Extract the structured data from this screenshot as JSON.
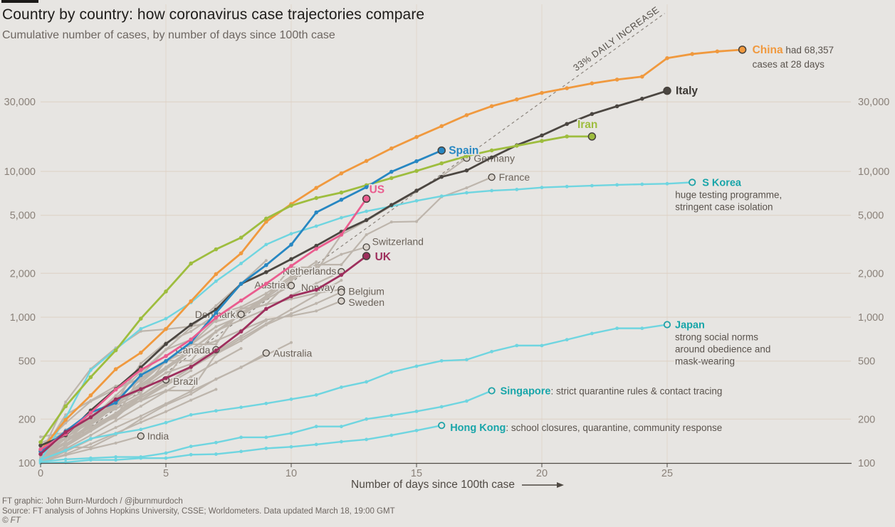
{
  "page": {
    "title": "Country by country: how coronavirus case trajectories compare",
    "subtitle": "Cumulative number of cases, by number of days since 100th case",
    "footer_lines": [
      "FT graphic: John Burn-Murdoch / @jburnmurdoch",
      "Source: FT analysis of Johns Hopkins University, CSSE; Worldometers. Data updated March 18, 19:00 GMT",
      "© FT"
    ]
  },
  "colors": {
    "background": "#e7e5e2",
    "china": "#f0993e",
    "italy": "#4b4641",
    "iran": "#9ebd3e",
    "spain": "#2787c2",
    "us": "#ea5d8f",
    "uk": "#9e2f5d",
    "asia_line": "#6fd5e0",
    "asia_dot_stroke": "#1fa3a8",
    "asia_label": "#18a5a9",
    "gray_line": "#bdb5ac",
    "gray_dot_fill": "#d8d2cb",
    "dot_stroke": "#46413c",
    "label_gray": "#6b6259",
    "note_text": "#5a534d",
    "axis_text": "#8a8179",
    "axis_line": "#514c46",
    "grid": "#ded1c4",
    "reference": "#8a837c"
  },
  "chart_data": {
    "type": "line",
    "x_scale": "linear",
    "y_scale": "log",
    "xlabel": "Number of days since 100th case",
    "x_ticks": [
      0,
      5,
      10,
      15,
      20,
      25
    ],
    "xlim": [
      0,
      32
    ],
    "ylim": [
      100,
      130000
    ],
    "grid": true,
    "y_ticks": [
      {
        "value": 100,
        "label": "100"
      },
      {
        "value": 200,
        "label": "200"
      },
      {
        "value": 500,
        "label": "500"
      },
      {
        "value": 1000,
        "label": "1,000"
      },
      {
        "value": 2000,
        "label": "2,000"
      },
      {
        "value": 5000,
        "label": "5,000"
      },
      {
        "value": 10000,
        "label": "10,000"
      },
      {
        "value": 30000,
        "label": "30,000"
      }
    ],
    "reference_line": {
      "label": "33% DAILY INCREASE",
      "daily_rate": 0.33,
      "start_value": 100
    },
    "series": [
      {
        "name": "Germany",
        "color_key": "gray",
        "emphasis": "gray",
        "values": [
          130,
          159,
          196,
          262,
          482,
          670,
          799,
          1040,
          1176,
          1457,
          1908,
          2078,
          3675,
          4585,
          5795,
          7272,
          9257,
          12327
        ],
        "label": {
          "dx": 10,
          "dy": 5,
          "anchor": "start"
        }
      },
      {
        "name": "France",
        "color_key": "gray",
        "emphasis": "gray",
        "values": [
          100,
          130,
          191,
          204,
          288,
          380,
          656,
          959,
          1136,
          1219,
          1794,
          2293,
          2293,
          3681,
          4496,
          4532,
          6683,
          7715,
          9124
        ],
        "label": {
          "dx": 10,
          "dy": 5,
          "anchor": "start"
        }
      },
      {
        "name": "Switzerland",
        "color_key": "gray",
        "emphasis": "gray",
        "values": [
          114,
          214,
          268,
          337,
          374,
          491,
          652,
          652,
          1139,
          1359,
          2200,
          2200,
          2700,
          3028
        ],
        "label": {
          "dx": 8,
          "dy": -3,
          "anchor": "start"
        }
      },
      {
        "name": "Netherlands",
        "color_key": "gray",
        "emphasis": "gray",
        "values": [
          128,
          188,
          265,
          321,
          382,
          503,
          503,
          804,
          959,
          1135,
          1413,
          1705,
          2051
        ],
        "label": {
          "dx": -7,
          "dy": 4,
          "anchor": "end"
        }
      },
      {
        "name": "Austria",
        "color_key": "gray",
        "emphasis": "gray",
        "values": [
          104,
          131,
          182,
          246,
          302,
          504,
          655,
          860,
          1018,
          1332,
          1646
        ],
        "label": {
          "dx": -8,
          "dy": 4,
          "anchor": "end"
        }
      },
      {
        "name": "Norway",
        "color_key": "gray",
        "emphasis": "gray",
        "values": [
          108,
          147,
          176,
          205,
          400,
          598,
          702,
          996,
          1090,
          1221,
          1333,
          1463,
          1550
        ],
        "label": {
          "dx": -9,
          "dy": 2,
          "anchor": "end"
        }
      },
      {
        "name": "Belgium",
        "color_key": "gray",
        "emphasis": "gray",
        "values": [
          109,
          169,
          200,
          239,
          267,
          314,
          314,
          559,
          689,
          886,
          1058,
          1243,
          1486
        ],
        "label": {
          "dx": 10,
          "dy": 4,
          "anchor": "start"
        }
      },
      {
        "name": "Sweden",
        "color_key": "gray",
        "emphasis": "gray",
        "values": [
          137,
          161,
          203,
          248,
          355,
          500,
          599,
          687,
          814,
          961,
          1022,
          1103,
          1292
        ],
        "label": {
          "dx": 10,
          "dy": 7,
          "anchor": "start"
        }
      },
      {
        "name": "Denmark",
        "color_key": "gray",
        "emphasis": "gray",
        "values": [
          113,
          262,
          442,
          615,
          801,
          827,
          864,
          933,
          1046
        ],
        "label": {
          "dx": -8,
          "dy": 5,
          "anchor": "end"
        }
      },
      {
        "name": "Canada",
        "color_key": "gray",
        "emphasis": "gray",
        "values": [
          108,
          158,
          193,
          252,
          321,
          415,
          478,
          598
        ],
        "label": {
          "dx": -8,
          "dy": 5,
          "anchor": "end"
        }
      },
      {
        "name": "Brazil",
        "color_key": "gray",
        "emphasis": "gray",
        "values": [
          151,
          162,
          200,
          234,
          291,
          372
        ],
        "label": {
          "dx": 10,
          "dy": 7,
          "anchor": "start"
        }
      },
      {
        "name": "Australia",
        "color_key": "gray",
        "emphasis": "gray",
        "values": [
          107,
          128,
          128,
          156,
          200,
          250,
          297,
          377,
          452,
          568
        ],
        "label": {
          "dx": 10,
          "dy": 5,
          "anchor": "start"
        }
      },
      {
        "name": "India",
        "color_key": "gray",
        "emphasis": "gray",
        "values": [
          102,
          113,
          125,
          137,
          153
        ],
        "label": {
          "dx": 9,
          "dy": 5,
          "anchor": "start"
        }
      },
      {
        "name": "S Korea",
        "color_key": "asia_line",
        "emphasis": "asia",
        "values": [
          104,
          204,
          433,
          602,
          833,
          977,
          1261,
          1766,
          2337,
          3150,
          3736,
          4212,
          4812,
          5328,
          5766,
          6284,
          6767,
          7134,
          7382,
          7513,
          7755,
          7869,
          7979,
          8086,
          8162,
          8236,
          8413
        ],
        "label": {
          "dx": 14,
          "dy": 5,
          "anchor": "start",
          "lines": [
            "huge testing programme,",
            "stringent case isolation"
          ],
          "lines_dx": -24
        }
      },
      {
        "name": "Japan",
        "color_key": "asia_line",
        "emphasis": "asia",
        "values": [
          105,
          122,
          147,
          159,
          170,
          189,
          214,
          228,
          241,
          256,
          274,
          293,
          331,
          360,
          420,
          461,
          502,
          511,
          581,
          639,
          639,
          701,
          773,
          839,
          839,
          889
        ],
        "label": {
          "dx": 11,
          "dy": 5,
          "anchor": "start",
          "lines": [
            "strong social norms",
            "around obedience and",
            "mask-wearing"
          ],
          "lines_dx": 11
        }
      },
      {
        "name": "Singapore",
        "color_key": "asia_line",
        "emphasis": "asia",
        "values": [
          102,
          106,
          108,
          110,
          110,
          117,
          130,
          138,
          150,
          150,
          160,
          178,
          178,
          200,
          212,
          226,
          243,
          266,
          313
        ],
        "label": {
          "dx": 12,
          "dy": 5,
          "anchor": "start",
          "inline_note": ": strict quarantine rules & contact tracing"
        }
      },
      {
        "name": "Hong Kong",
        "color_key": "asia_line",
        "emphasis": "asia",
        "values": [
          100,
          101,
          105,
          105,
          108,
          108,
          114,
          115,
          120,
          126,
          129,
          134,
          140,
          145,
          155,
          167,
          181
        ],
        "label": {
          "dx": 12,
          "dy": 8,
          "anchor": "start",
          "inline_note": ": school closures, quarantine, community response"
        }
      },
      {
        "name": "China",
        "color_key": "china",
        "emphasis": "strong",
        "values": [
          121,
          198,
          291,
          440,
          571,
          830,
          1287,
          1975,
          2744,
          4515,
          5974,
          7711,
          9692,
          11791,
          14380,
          17205,
          20440,
          24324,
          28018,
          31161,
          34546,
          37198,
          40171,
          42638,
          44653,
          59804,
          63851,
          66492,
          68357
        ],
        "label": {
          "dx": 14,
          "dy": 5,
          "anchor": "start",
          "inline_note": " had 68,357",
          "lines": [
            "cases at 28 days"
          ],
          "lines_dx": 14,
          "line_h": 20
        }
      },
      {
        "name": "Italy",
        "color_key": "italy",
        "emphasis": "strong",
        "label_color": "#3b3733",
        "values": [
          132,
          155,
          229,
          322,
          453,
          655,
          888,
          1128,
          1694,
          2036,
          2502,
          3089,
          3858,
          4636,
          5883,
          7375,
          9172,
          10149,
          12462,
          15113,
          17660,
          21157,
          24747,
          27980,
          31506,
          35713
        ],
        "label": {
          "dx": 12,
          "dy": 5,
          "anchor": "start"
        }
      },
      {
        "name": "Iran",
        "color_key": "iran",
        "emphasis": "strong",
        "values": [
          139,
          245,
          388,
          593,
          978,
          1501,
          2336,
          2922,
          3513,
          4747,
          5823,
          6566,
          7161,
          8042,
          9000,
          10075,
          11364,
          12729,
          13938,
          14991,
          16169,
          17361,
          17361
        ],
        "label": {
          "dx": 8,
          "dy": -12,
          "anchor": "end"
        }
      },
      {
        "name": "Spain",
        "color_key": "spain",
        "emphasis": "strong",
        "values": [
          120,
          165,
          222,
          259,
          400,
          500,
          673,
          1073,
          1695,
          2277,
          3146,
          5232,
          6391,
          7798,
          9942,
          11748,
          13910
        ],
        "label": {
          "dx": 10,
          "dy": 5,
          "anchor": "start"
        }
      },
      {
        "name": "US",
        "color_key": "us",
        "emphasis": "strong",
        "values": [
          124,
          158,
          221,
          319,
          435,
          541,
          704,
          994,
          1301,
          1697,
          2247,
          2943,
          3680,
          6496
        ],
        "label": {
          "dx": 4,
          "dy": -8,
          "anchor": "start"
        }
      },
      {
        "name": "UK",
        "color_key": "uk",
        "emphasis": "strong",
        "values": [
          115,
          163,
          206,
          273,
          321,
          382,
          456,
          590,
          798,
          1140,
          1391,
          1543,
          1950,
          2626
        ],
        "label": {
          "dx": 12,
          "dy": 6,
          "anchor": "start"
        }
      }
    ],
    "background_series": [
      [
        100,
        140,
        200,
        290,
        420,
        600,
        850,
        1200,
        1700,
        2450
      ],
      [
        110,
        150,
        190,
        260,
        340,
        450,
        600,
        790,
        1040,
        1360,
        1780
      ],
      [
        105,
        130,
        165,
        210,
        270,
        350,
        450,
        580,
        740,
        950
      ],
      [
        120,
        160,
        210,
        280,
        370,
        490,
        650,
        860
      ],
      [
        100,
        125,
        155,
        195,
        245,
        310,
        390,
        490,
        610
      ],
      [
        110,
        135,
        170,
        215,
        270,
        340,
        430
      ],
      [
        100,
        115,
        135,
        160,
        190,
        225,
        270,
        320
      ],
      [
        105,
        140,
        185,
        250,
        330,
        440,
        580
      ],
      [
        100,
        130,
        170,
        220,
        290,
        380
      ],
      [
        115,
        150,
        200,
        260,
        345,
        455,
        600,
        800,
        1060,
        1400,
        1850,
        2400
      ],
      [
        100,
        120,
        145,
        175,
        210,
        255,
        310,
        375,
        455,
        550,
        670
      ],
      [
        110,
        140,
        175,
        220,
        280,
        355,
        450,
        565,
        715,
        900,
        1130,
        1420,
        1790
      ]
    ]
  }
}
